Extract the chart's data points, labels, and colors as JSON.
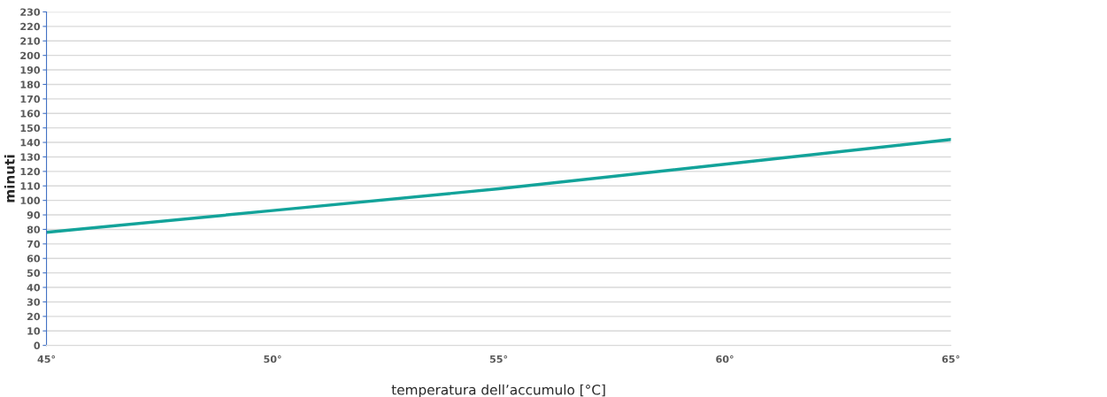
{
  "chart_data": {
    "type": "line",
    "xlabel": "temperatura dell’accumulo [°C]",
    "ylabel": "minuti",
    "x": [
      45,
      50,
      55,
      60,
      65
    ],
    "series": [
      {
        "color": "#13a39a",
        "values": [
          78,
          93,
          108,
          125,
          142
        ]
      }
    ],
    "xlim": [
      45,
      65
    ],
    "xticks": [
      {
        "value": 45,
        "label": "45°"
      },
      {
        "value": 50,
        "label": "50°"
      },
      {
        "value": 55,
        "label": "55°"
      },
      {
        "value": 60,
        "label": "60°"
      },
      {
        "value": 65,
        "label": "65°"
      }
    ],
    "ylim": [
      0,
      230
    ],
    "yticks": [
      0,
      10,
      20,
      30,
      40,
      50,
      60,
      70,
      80,
      90,
      100,
      110,
      120,
      130,
      140,
      150,
      160,
      170,
      180,
      190,
      200,
      210,
      220,
      230
    ],
    "grid": "y",
    "marker": "none",
    "line_style": "solid"
  }
}
